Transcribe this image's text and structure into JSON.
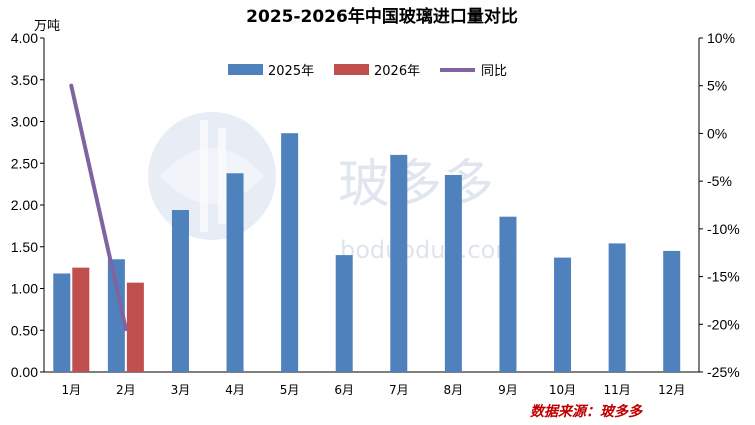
{
  "colors": {
    "series_2025": "#4f81bd",
    "series_2026": "#c0504d",
    "yoy_line": "#8064a2",
    "source": "#c00000"
  },
  "watermark": {
    "text": "玻多多",
    "url": "boduoduo.com"
  },
  "source_text": "数据来源：玻多多",
  "chart_data": {
    "type": "bar",
    "title": "2025-2026年中国玻璃进口量对比",
    "y_unit": "万吨",
    "categories": [
      "1月",
      "2月",
      "3月",
      "4月",
      "5月",
      "6月",
      "7月",
      "8月",
      "9月",
      "10月",
      "11月",
      "12月"
    ],
    "ylim": [
      0,
      4
    ],
    "y_ticks": [
      "0.00",
      "0.50",
      "1.00",
      "1.50",
      "2.00",
      "2.50",
      "3.00",
      "3.50",
      "4.00"
    ],
    "y2lim": [
      -25,
      10
    ],
    "y2_ticks": [
      "-25%",
      "-20%",
      "-15%",
      "-10%",
      "-5%",
      "0%",
      "5%",
      "10%"
    ],
    "legend_position": "top-center",
    "grid": false,
    "series": [
      {
        "name": "2025年",
        "type": "bar",
        "values": [
          1.18,
          1.35,
          1.94,
          2.38,
          2.86,
          1.4,
          2.6,
          2.36,
          1.86,
          1.37,
          1.54,
          1.45
        ]
      },
      {
        "name": "2026年",
        "type": "bar",
        "values": [
          1.25,
          1.07,
          null,
          null,
          null,
          null,
          null,
          null,
          null,
          null,
          null,
          null
        ]
      },
      {
        "name": "同比",
        "type": "line",
        "axis": "right",
        "unit": "%",
        "values": [
          5.0,
          -20.5,
          null,
          null,
          null,
          null,
          null,
          null,
          null,
          null,
          null,
          null
        ]
      }
    ]
  }
}
